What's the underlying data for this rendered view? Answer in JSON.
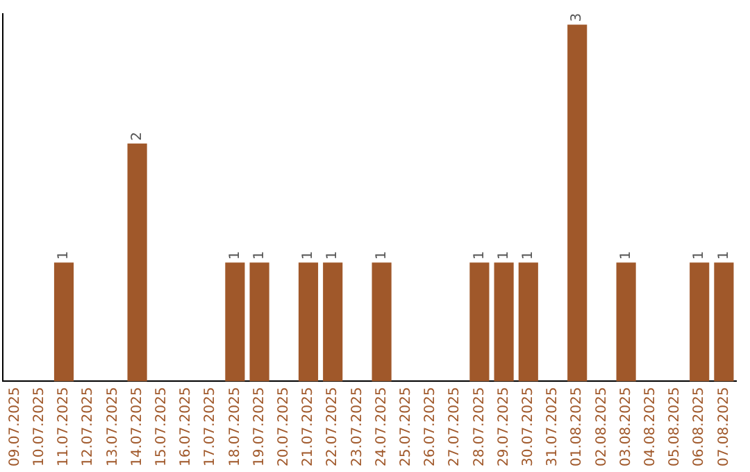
{
  "chart_data": {
    "type": "bar",
    "categories": [
      "09.07.2025",
      "10.07.2025",
      "11.07.2025",
      "12.07.2025",
      "13.07.2025",
      "14.07.2025",
      "15.07.2025",
      "16.07.2025",
      "17.07.2025",
      "18.07.2025",
      "19.07.2025",
      "20.07.2025",
      "21.07.2025",
      "22.07.2025",
      "23.07.2025",
      "24.07.2025",
      "25.07.2025",
      "26.07.2025",
      "27.07.2025",
      "28.07.2025",
      "29.07.2025",
      "30.07.2025",
      "31.07.2025",
      "01.08.2025",
      "02.08.2025",
      "03.08.2025",
      "04.08.2025",
      "05.08.2025",
      "06.08.2025",
      "07.08.2025"
    ],
    "values": [
      0,
      0,
      1,
      0,
      0,
      2,
      0,
      0,
      0,
      1,
      1,
      0,
      1,
      1,
      0,
      1,
      0,
      0,
      0,
      1,
      1,
      1,
      0,
      3,
      0,
      1,
      0,
      0,
      1,
      1
    ],
    "value_labels": [
      null,
      null,
      "1",
      null,
      null,
      "2",
      null,
      null,
      null,
      "1",
      "1",
      null,
      "1",
      "1",
      null,
      "1",
      null,
      null,
      null,
      "1",
      "1",
      "1",
      null,
      "3",
      null,
      "1",
      null,
      null,
      "1",
      "1"
    ],
    "color": "#a0582a",
    "tick_labels": "x",
    "grid": false,
    "legend": false
  }
}
